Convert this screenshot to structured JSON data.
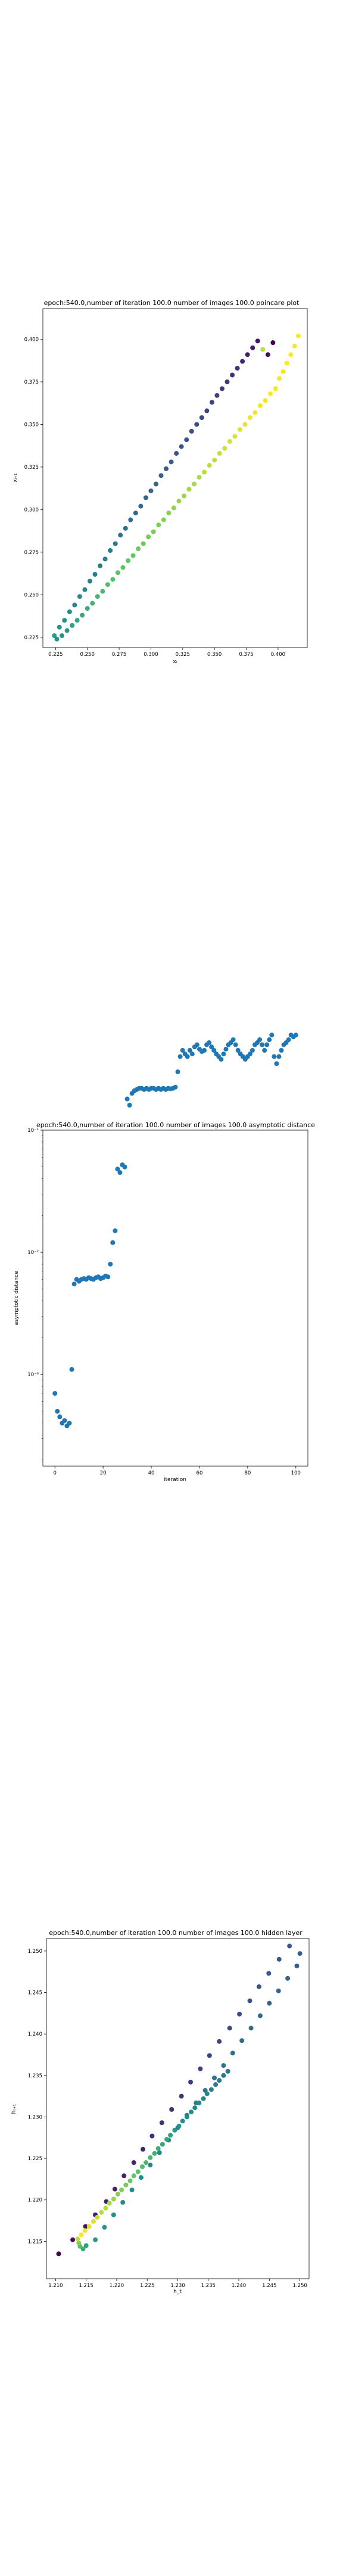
{
  "chart_data": [
    {
      "type": "scatter",
      "title": "epoch:540.0,number of iteration 100.0 number of images 100.0 poincare plot",
      "xlabel": "xᵢ",
      "ylabel": "xᵢ₊₁",
      "xlim": [
        0.215,
        0.423
      ],
      "ylim": [
        0.219,
        0.418
      ],
      "xticks": [
        0.225,
        0.25,
        0.275,
        0.3,
        0.325,
        0.35,
        0.375,
        0.4
      ],
      "xtick_labels": [
        "0.225",
        "0.250",
        "0.275",
        "0.300",
        "0.325",
        "0.350",
        "0.375",
        "0.400"
      ],
      "yticks": [
        0.225,
        0.25,
        0.275,
        0.3,
        0.325,
        0.35,
        0.375,
        0.4
      ],
      "ytick_labels": [
        "0.225",
        "0.250",
        "0.275",
        "0.300",
        "0.325",
        "0.350",
        "0.375",
        "0.400"
      ],
      "grid": false,
      "colormap": "viridis",
      "series": [
        {
          "marker": "circle",
          "x": [
            0.224,
            0.228,
            0.232,
            0.236,
            0.24,
            0.244,
            0.248,
            0.252,
            0.256,
            0.26,
            0.264,
            0.268,
            0.272,
            0.276,
            0.28,
            0.284,
            0.288,
            0.292,
            0.296,
            0.3,
            0.304,
            0.308,
            0.312,
            0.316,
            0.32,
            0.324,
            0.328,
            0.332,
            0.336,
            0.34,
            0.344,
            0.348,
            0.352,
            0.356,
            0.36,
            0.364,
            0.368,
            0.372,
            0.376,
            0.38,
            0.384,
            0.388,
            0.392,
            0.396,
            0.226,
            0.23,
            0.234,
            0.238,
            0.242,
            0.246,
            0.25,
            0.254,
            0.258,
            0.262,
            0.266,
            0.27,
            0.274,
            0.278,
            0.282,
            0.286,
            0.29,
            0.294,
            0.298,
            0.302,
            0.306,
            0.31,
            0.314,
            0.318,
            0.322,
            0.326,
            0.33,
            0.334,
            0.338,
            0.342,
            0.346,
            0.35,
            0.354,
            0.358,
            0.362,
            0.366,
            0.37,
            0.374,
            0.378,
            0.382,
            0.386,
            0.39,
            0.394,
            0.398,
            0.401,
            0.404,
            0.407,
            0.41,
            0.413,
            0.416
          ],
          "y": [
            0.226,
            0.231,
            0.235,
            0.24,
            0.244,
            0.249,
            0.253,
            0.258,
            0.262,
            0.267,
            0.271,
            0.276,
            0.28,
            0.285,
            0.289,
            0.294,
            0.298,
            0.302,
            0.307,
            0.311,
            0.315,
            0.32,
            0.324,
            0.328,
            0.333,
            0.337,
            0.341,
            0.346,
            0.35,
            0.354,
            0.358,
            0.363,
            0.367,
            0.371,
            0.375,
            0.379,
            0.383,
            0.387,
            0.391,
            0.395,
            0.399,
            0.394,
            0.391,
            0.398,
            0.224,
            0.226,
            0.229,
            0.232,
            0.235,
            0.238,
            0.242,
            0.245,
            0.249,
            0.252,
            0.256,
            0.259,
            0.263,
            0.266,
            0.27,
            0.273,
            0.277,
            0.28,
            0.284,
            0.287,
            0.291,
            0.294,
            0.298,
            0.301,
            0.305,
            0.308,
            0.312,
            0.315,
            0.319,
            0.322,
            0.326,
            0.329,
            0.333,
            0.336,
            0.34,
            0.343,
            0.347,
            0.35,
            0.354,
            0.357,
            0.361,
            0.364,
            0.368,
            0.371,
            0.377,
            0.381,
            0.386,
            0.391,
            0.396,
            0.402
          ],
          "color_value": [
            0.55,
            0.52,
            0.5,
            0.48,
            0.47,
            0.46,
            0.45,
            0.44,
            0.43,
            0.42,
            0.41,
            0.4,
            0.39,
            0.38,
            0.37,
            0.36,
            0.35,
            0.34,
            0.33,
            0.32,
            0.31,
            0.3,
            0.29,
            0.28,
            0.27,
            0.26,
            0.25,
            0.24,
            0.23,
            0.22,
            0.21,
            0.2,
            0.19,
            0.18,
            0.17,
            0.16,
            0.15,
            0.12,
            0.1,
            0.08,
            0.06,
            0.9,
            0.04,
            0.0,
            0.5,
            0.52,
            0.54,
            0.56,
            0.58,
            0.6,
            0.62,
            0.64,
            0.66,
            0.68,
            0.7,
            0.71,
            0.72,
            0.73,
            0.74,
            0.75,
            0.76,
            0.77,
            0.78,
            0.79,
            0.8,
            0.81,
            0.82,
            0.83,
            0.84,
            0.85,
            0.86,
            0.87,
            0.88,
            0.89,
            0.9,
            0.91,
            0.92,
            0.93,
            0.94,
            0.95,
            0.96,
            0.97,
            0.98,
            0.98,
            0.99,
            0.99,
            1.0,
            1.0,
            1.0,
            1.0,
            1.0,
            1.0,
            1.0,
            1.0
          ]
        }
      ]
    },
    {
      "type": "scatter",
      "title": "epoch:540.0,number of iteration 100.0  number of images 100.0 asymptotic distance",
      "xlabel": "iteration",
      "ylabel": "asymptotic distance",
      "xlim": [
        -5,
        105
      ],
      "ylim_log10": [
        -3.75,
        -1.0
      ],
      "yscale": "log",
      "xticks": [
        0,
        20,
        40,
        60,
        80,
        100
      ],
      "xtick_labels": [
        "0",
        "20",
        "40",
        "60",
        "80",
        "100"
      ],
      "yticks_log10": [
        -1,
        -2,
        -3
      ],
      "ytick_labels": [
        "10⁻¹",
        "10⁻²",
        "10⁻³"
      ],
      "grid": false,
      "series": [
        {
          "color": "#1f77b4",
          "marker": "circle",
          "x": [
            0,
            1,
            2,
            3,
            4,
            5,
            6,
            7,
            8,
            9,
            10,
            11,
            12,
            13,
            14,
            15,
            16,
            17,
            18,
            19,
            20,
            21,
            22,
            23,
            24,
            25,
            26,
            27,
            28,
            29,
            30,
            31,
            32,
            33,
            34,
            35,
            36,
            37,
            38,
            39,
            40,
            41,
            42,
            43,
            44,
            45,
            46,
            47,
            48,
            49,
            50,
            51,
            52,
            53,
            54,
            55,
            56,
            57,
            58,
            59,
            60,
            61,
            62,
            63,
            64,
            65,
            66,
            67,
            68,
            69,
            70,
            71,
            72,
            73,
            74,
            75,
            76,
            77,
            78,
            79,
            80,
            81,
            82,
            83,
            84,
            85,
            86,
            87,
            88,
            89,
            90,
            91,
            92,
            93,
            94,
            95,
            96,
            97,
            98,
            99,
            100
          ],
          "y": [
            0.0007,
            0.0005,
            0.00045,
            0.0004,
            0.00042,
            0.00038,
            0.0004,
            0.0011,
            0.0055,
            0.006,
            0.0058,
            0.006,
            0.0061,
            0.006,
            0.0062,
            0.0061,
            0.006,
            0.0062,
            0.0063,
            0.0061,
            0.0062,
            0.0064,
            0.0063,
            0.008,
            0.012,
            0.015,
            0.048,
            0.045,
            0.052,
            0.05,
            0.18,
            0.16,
            0.2,
            0.21,
            0.215,
            0.22,
            0.22,
            0.215,
            0.22,
            0.215,
            0.22,
            0.22,
            0.215,
            0.22,
            0.215,
            0.22,
            0.215,
            0.22,
            0.218,
            0.22,
            0.225,
            0.3,
            0.4,
            0.45,
            0.42,
            0.4,
            0.45,
            0.42,
            0.48,
            0.5,
            0.46,
            0.44,
            0.45,
            0.5,
            0.52,
            0.48,
            0.45,
            0.42,
            0.4,
            0.38,
            0.42,
            0.46,
            0.5,
            0.52,
            0.55,
            0.5,
            0.45,
            0.42,
            0.4,
            0.38,
            0.4,
            0.42,
            0.45,
            0.5,
            0.52,
            0.55,
            0.5,
            0.45,
            0.5,
            0.55,
            0.6,
            0.4,
            0.35,
            0.4,
            0.45,
            0.5,
            0.52,
            0.55,
            0.6,
            0.58,
            0.6
          ]
        }
      ]
    },
    {
      "type": "scatter",
      "title": "epoch:540.0,number of iteration 100.0  number of images 100.0 hidden layer",
      "xlabel": "h_t",
      "ylabel": "hₜ₊₁",
      "xlim": [
        1.2085,
        1.2515
      ],
      "ylim": [
        1.2105,
        1.2515
      ],
      "xticks": [
        1.21,
        1.215,
        1.22,
        1.225,
        1.23,
        1.235,
        1.24,
        1.245,
        1.25
      ],
      "xtick_labels": [
        "1.210",
        "1.215",
        "1.220",
        "1.225",
        "1.230",
        "1.235",
        "1.240",
        "1.245",
        "1.250"
      ],
      "yticks": [
        1.215,
        1.22,
        1.225,
        1.23,
        1.235,
        1.24,
        1.245,
        1.25
      ],
      "ytick_labels": [
        "1.215",
        "1.220",
        "1.225",
        "1.230",
        "1.235",
        "1.240",
        "1.245",
        "1.250"
      ],
      "grid": false,
      "colormap": "viridis",
      "series": [
        {
          "marker": "circle",
          "x": [
            1.2105,
            1.2128,
            1.2149,
            1.2165,
            1.2183,
            1.2197,
            1.2212,
            1.2228,
            1.2243,
            1.2258,
            1.2274,
            1.229,
            1.2306,
            1.2321,
            1.2337,
            1.2352,
            1.2368,
            1.2385,
            1.2401,
            1.2418,
            1.2433,
            1.2449,
            1.2466,
            1.2483,
            1.25,
            1.2495,
            1.248,
            1.2465,
            1.245,
            1.2435,
            1.242,
            1.2405,
            1.239,
            1.2375,
            1.236,
            1.2345,
            1.233,
            1.2315,
            1.23,
            1.2285,
            1.227,
            1.2255,
            1.224,
            1.2225,
            1.221,
            1.2195,
            1.218,
            1.2165,
            1.215,
            1.2145,
            1.214,
            1.2138,
            1.2136,
            1.2142,
            1.2148,
            1.2155,
            1.2162,
            1.2168,
            1.2175,
            1.2182,
            1.2188,
            1.2195,
            1.2202,
            1.2208,
            1.2215,
            1.2222,
            1.2228,
            1.2235,
            1.2242,
            1.2248,
            1.2255,
            1.2262,
            1.2268,
            1.2275,
            1.2282,
            1.2288,
            1.2295,
            1.2302,
            1.2308,
            1.2315,
            1.2322,
            1.2328,
            1.2335,
            1.2342,
            1.2348,
            1.2355,
            1.2362,
            1.2368,
            1.2375,
            1.2382
          ],
          "y": [
            1.2135,
            1.2152,
            1.2168,
            1.2182,
            1.2198,
            1.2213,
            1.2229,
            1.2245,
            1.2261,
            1.2277,
            1.2293,
            1.2309,
            1.2325,
            1.2342,
            1.2358,
            1.2374,
            1.2391,
            1.2407,
            1.2424,
            1.244,
            1.2457,
            1.2473,
            1.249,
            1.2506,
            1.2497,
            1.2482,
            1.2467,
            1.2452,
            1.2437,
            1.2422,
            1.2407,
            1.2392,
            1.2377,
            1.2362,
            1.2347,
            1.2332,
            1.2317,
            1.2302,
            1.2287,
            1.2272,
            1.2257,
            1.2242,
            1.2227,
            1.2212,
            1.2197,
            1.2182,
            1.2167,
            1.2152,
            1.2145,
            1.2141,
            1.2144,
            1.2148,
            1.2153,
            1.2158,
            1.2163,
            1.2168,
            1.2174,
            1.2179,
            1.2185,
            1.219,
            1.2196,
            1.2201,
            1.2207,
            1.2212,
            1.2218,
            1.2223,
            1.2229,
            1.2234,
            1.224,
            1.2245,
            1.2251,
            1.2256,
            1.2262,
            1.2267,
            1.2273,
            1.2278,
            1.2284,
            1.2289,
            1.2295,
            1.23,
            1.2306,
            1.2311,
            1.2317,
            1.2322,
            1.2328,
            1.2333,
            1.2339,
            1.2344,
            1.235,
            1.2355
          ],
          "color_value": [
            0.0,
            0.04,
            0.06,
            0.08,
            0.09,
            0.1,
            0.11,
            0.12,
            0.13,
            0.14,
            0.15,
            0.16,
            0.17,
            0.18,
            0.19,
            0.2,
            0.21,
            0.22,
            0.23,
            0.24,
            0.25,
            0.26,
            0.27,
            0.28,
            0.29,
            0.3,
            0.31,
            0.32,
            0.33,
            0.34,
            0.35,
            0.36,
            0.37,
            0.38,
            0.39,
            0.4,
            0.41,
            0.42,
            0.43,
            0.44,
            0.45,
            0.46,
            0.47,
            0.48,
            0.49,
            0.5,
            0.52,
            0.54,
            0.56,
            0.6,
            0.7,
            0.8,
            0.9,
            1.0,
            0.98,
            0.96,
            0.94,
            0.92,
            0.9,
            0.88,
            0.86,
            0.84,
            0.82,
            0.8,
            0.78,
            0.76,
            0.74,
            0.72,
            0.7,
            0.68,
            0.66,
            0.64,
            0.62,
            0.6,
            0.58,
            0.56,
            0.54,
            0.52,
            0.5,
            0.49,
            0.48,
            0.47,
            0.46,
            0.45,
            0.44,
            0.43,
            0.42,
            0.41,
            0.4,
            0.39
          ]
        }
      ]
    }
  ]
}
